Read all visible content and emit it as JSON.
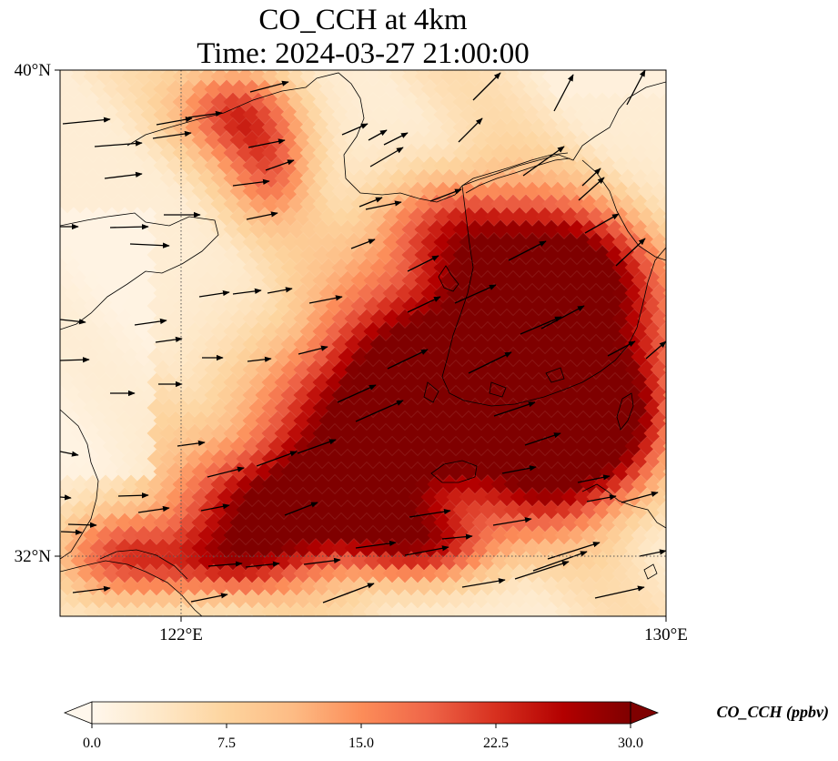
{
  "figure": {
    "title_line1": "CO_CCH at 4km",
    "title_line2": "Time: 2024-03-27 21:00:00"
  },
  "map": {
    "lon_range": [
      120,
      130
    ],
    "lat_range": [
      31,
      40
    ],
    "lat_labels": [
      "40°N",
      "32°N"
    ],
    "lon_labels": [
      "122°E",
      "130°E"
    ],
    "gridline_lon": 122,
    "gridline_lat": 32,
    "field_name": "CO_CCH",
    "colormap": "OrRd",
    "colormap_stops": [
      "#fff7ec",
      "#fee8c8",
      "#fdd49e",
      "#fdbb84",
      "#fc8d59",
      "#ef6548",
      "#d7301f",
      "#b30000",
      "#7f0000"
    ]
  },
  "colorbar": {
    "label": "CO_CCH (ppbv)",
    "min": 0,
    "max": 30,
    "ticks": [
      "0.0",
      "7.5",
      "15.0",
      "22.5",
      "30.0"
    ],
    "extend": "both"
  }
}
